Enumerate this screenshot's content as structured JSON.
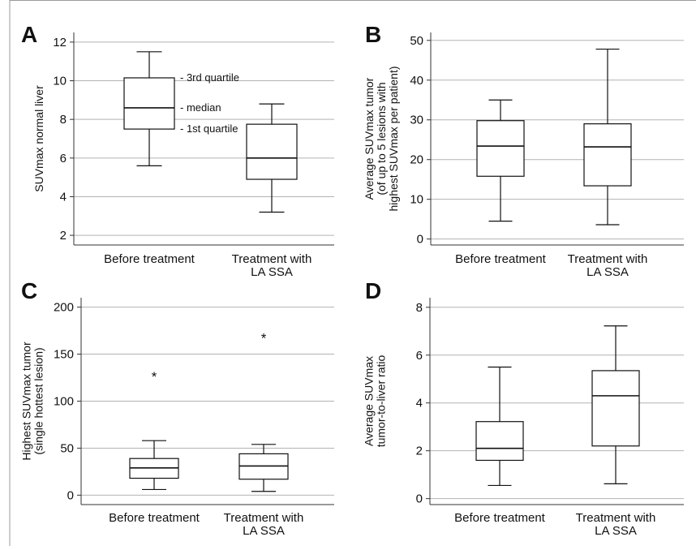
{
  "chart_data": [
    {
      "panel": "A",
      "type": "box",
      "ylabel_lines": [
        "SUVmax normal liver"
      ],
      "ylim": [
        1.5,
        12.5
      ],
      "yticks": [
        2,
        4,
        6,
        8,
        10,
        12
      ],
      "grid": true,
      "categories": [
        {
          "lines": [
            "Before treatment"
          ],
          "min": 5.6,
          "q1": 7.5,
          "median": 8.6,
          "q3": 10.15,
          "max": 11.5,
          "outliers": []
        },
        {
          "lines": [
            "Treatment with",
            "LA SSA"
          ],
          "min": 3.2,
          "q1": 4.9,
          "median": 6.0,
          "q3": 7.75,
          "max": 8.8,
          "outliers": []
        }
      ],
      "annotations": [
        {
          "text": "- 3rd quartile",
          "anchor": "q3"
        },
        {
          "text": "- median",
          "anchor": "median"
        },
        {
          "text": "- 1st quartile",
          "anchor": "q1"
        }
      ]
    },
    {
      "panel": "B",
      "type": "box",
      "ylabel_lines": [
        "Average SUVmax tumor",
        "(of up to 5 lesions with",
        "highest SUVmax per patient)"
      ],
      "ylim": [
        -1.5,
        52
      ],
      "yticks": [
        0,
        10,
        20,
        30,
        40,
        50
      ],
      "grid": true,
      "categories": [
        {
          "lines": [
            "Before treatment"
          ],
          "min": 4.5,
          "q1": 15.8,
          "median": 23.4,
          "q3": 29.8,
          "max": 35.0,
          "outliers": []
        },
        {
          "lines": [
            "Treatment with",
            "LA SSA"
          ],
          "min": 3.6,
          "q1": 13.4,
          "median": 23.2,
          "q3": 29.0,
          "max": 47.8,
          "outliers": []
        }
      ],
      "annotations": []
    },
    {
      "panel": "C",
      "type": "box",
      "ylabel_lines": [
        "Highest SUVmax tumor",
        "(single hottest lesion)"
      ],
      "ylim": [
        -10,
        210
      ],
      "yticks": [
        0,
        50,
        100,
        150,
        200
      ],
      "grid": true,
      "categories": [
        {
          "lines": [
            "Before treatment"
          ],
          "min": 6,
          "q1": 18,
          "median": 29,
          "q3": 39,
          "max": 58,
          "outliers": [
            128
          ]
        },
        {
          "lines": [
            "Treatment with",
            "LA SSA"
          ],
          "min": 4,
          "q1": 17,
          "median": 31,
          "q3": 44,
          "max": 54,
          "outliers": [
            169
          ]
        }
      ],
      "annotations": []
    },
    {
      "panel": "D",
      "type": "box",
      "ylabel_lines": [
        "Average SUVmax",
        "tumor-to-liver ratio"
      ],
      "ylim": [
        -0.25,
        8.4
      ],
      "yticks": [
        0,
        2,
        4,
        6,
        8
      ],
      "grid": true,
      "categories": [
        {
          "lines": [
            "Before treatment"
          ],
          "min": 0.55,
          "q1": 1.6,
          "median": 2.1,
          "q3": 3.22,
          "max": 5.5,
          "outliers": []
        },
        {
          "lines": [
            "Treatment with",
            "LA SSA"
          ],
          "min": 0.62,
          "q1": 2.2,
          "median": 4.3,
          "q3": 5.35,
          "max": 7.22,
          "outliers": []
        }
      ],
      "annotations": []
    }
  ]
}
